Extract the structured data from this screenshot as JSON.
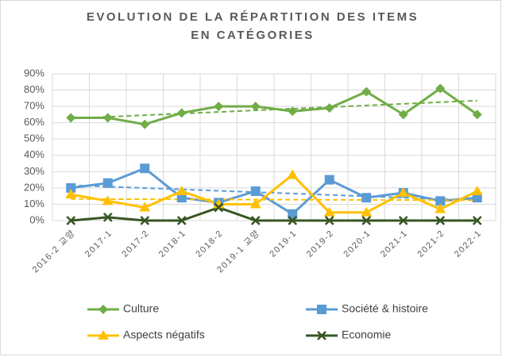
{
  "chart_data": {
    "type": "line",
    "title": [
      "EVOLUTION DE LA RÉPARTITION DES ITEMS",
      "EN CATÉGORIES"
    ],
    "categories": [
      "2016-2 교양",
      "2017-1",
      "2017-2",
      "2018-1",
      "2018-2",
      "2019-1 교양",
      "2019-1",
      "2019-2",
      "2020-1",
      "2021-1",
      "2021-2",
      "2022-1"
    ],
    "series": [
      {
        "name": "Culture",
        "color": "#70ad47",
        "marker": "diamond",
        "trendline": true,
        "values": [
          63,
          63,
          59,
          66,
          70,
          70,
          67,
          69,
          79,
          65,
          81,
          65
        ]
      },
      {
        "name": "Société & histoire",
        "color": "#5b9bd5",
        "marker": "square",
        "trendline": true,
        "values": [
          20,
          23,
          32,
          14,
          11,
          18,
          4,
          25,
          14,
          17,
          12,
          14
        ]
      },
      {
        "name": "Aspects négatifs",
        "color": "#ffc000",
        "marker": "triangle",
        "trendline": true,
        "values": [
          16,
          12,
          8,
          18,
          10,
          10,
          28,
          5,
          5,
          17,
          7,
          18
        ]
      },
      {
        "name": "Economie",
        "color": "#375623",
        "marker": "x",
        "trendline": false,
        "values": [
          0,
          2,
          0,
          0,
          8,
          0,
          0,
          0,
          0,
          0,
          0,
          0
        ]
      }
    ],
    "ylim": [
      0,
      90
    ],
    "yticks": [
      {
        "value": 0,
        "label": "0%"
      },
      {
        "value": 10,
        "label": "10%"
      },
      {
        "value": 20,
        "label": "20%"
      },
      {
        "value": 30,
        "label": "30%"
      },
      {
        "value": 40,
        "label": "40%"
      },
      {
        "value": 50,
        "label": "50%"
      },
      {
        "value": 60,
        "label": "60%"
      },
      {
        "value": 70,
        "label": "70%"
      },
      {
        "value": 80,
        "label": "80%"
      },
      {
        "value": 90,
        "label": "90%"
      }
    ],
    "grid": true
  }
}
